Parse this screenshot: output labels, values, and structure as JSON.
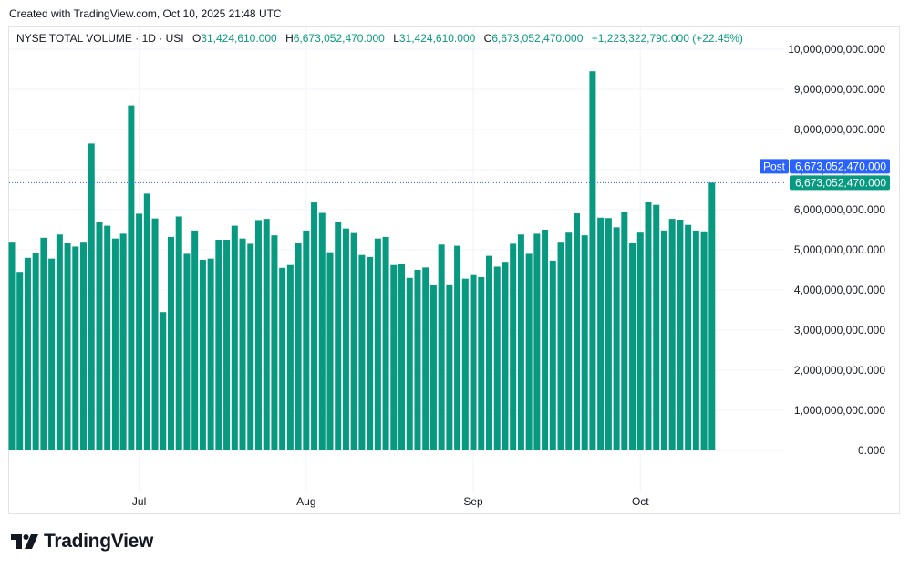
{
  "header": {
    "credit": "Created with TradingView.com, Oct 10, 2025 21:48 UTC"
  },
  "legend": {
    "symbol": "NYSE TOTAL VOLUME · 1D · USI",
    "o_key": "O",
    "o_val": "31,424,610.000",
    "h_key": "H",
    "h_val": "6,673,052,470.000",
    "l_key": "L",
    "l_val": "31,424,610.000",
    "c_key": "C",
    "c_val": "6,673,052,470.000",
    "change": "+1,223,322,790.000 (+22.45%)"
  },
  "price_labels": {
    "post_tag": "Post",
    "post_value": "6,673,052,470.000",
    "last_value": "6,673,052,470.000"
  },
  "brand": {
    "name": "TradingView"
  },
  "colors": {
    "bar": "#089981",
    "post_tag": "#2962ff",
    "last_label": "#089981",
    "grid": "#f0f3fa",
    "text": "#131722"
  },
  "chart_data": {
    "type": "bar",
    "series_name": "NYSE TOTAL VOLUME",
    "ylim": [
      0,
      10000000000000
    ],
    "y_ticks": [
      {
        "value": 0,
        "label": "0.000"
      },
      {
        "value": 1000000000000,
        "label": "1,000,000,000.000"
      },
      {
        "value": 2000000000000,
        "label": "2,000,000,000.000"
      },
      {
        "value": 3000000000000,
        "label": "3,000,000,000.000"
      },
      {
        "value": 4000000000000,
        "label": "4,000,000,000.000"
      },
      {
        "value": 5000000000000,
        "label": "5,000,000,000.000"
      },
      {
        "value": 6000000000000,
        "label": "6,000,000,000.000"
      },
      {
        "value": 7000000000000,
        "label": "7,000,000,000.000"
      },
      {
        "value": 8000000000000,
        "label": "8,000,000,000.000"
      },
      {
        "value": 9000000000000,
        "label": "9,000,000,000.000"
      },
      {
        "value": 10000000000000,
        "label": "10,000,000,000.000"
      }
    ],
    "x_ticks": [
      {
        "index": 16,
        "label": "Jul"
      },
      {
        "index": 37,
        "label": "Aug"
      },
      {
        "index": 58,
        "label": "Sep"
      },
      {
        "index": 79,
        "label": "Oct"
      }
    ],
    "last_value": 6673052470000,
    "values": [
      5200000000000,
      4450000000000,
      4800000000000,
      4920000000000,
      5300000000000,
      4780000000000,
      5380000000000,
      5180000000000,
      5080000000000,
      5200000000000,
      7650000000000,
      5700000000000,
      5600000000000,
      5280000000000,
      5400000000000,
      8600000000000,
      5900000000000,
      6400000000000,
      5780000000000,
      3450000000000,
      5320000000000,
      5830000000000,
      4900000000000,
      5480000000000,
      4750000000000,
      4780000000000,
      5250000000000,
      5250000000000,
      5600000000000,
      5280000000000,
      5150000000000,
      5740000000000,
      5770000000000,
      5360000000000,
      4550000000000,
      4620000000000,
      5180000000000,
      5480000000000,
      6180000000000,
      5920000000000,
      4940000000000,
      5700000000000,
      5530000000000,
      5440000000000,
      4870000000000,
      4820000000000,
      5280000000000,
      5320000000000,
      4620000000000,
      4660000000000,
      4300000000000,
      4500000000000,
      4560000000000,
      4120000000000,
      5130000000000,
      4140000000000,
      5100000000000,
      4280000000000,
      4370000000000,
      4320000000000,
      4850000000000,
      4580000000000,
      4700000000000,
      5150000000000,
      5380000000000,
      4900000000000,
      5400000000000,
      5500000000000,
      4730000000000,
      5200000000000,
      5450000000000,
      5910000000000,
      5360000000000,
      9450000000000,
      5800000000000,
      5790000000000,
      5560000000000,
      5940000000000,
      5180000000000,
      5450000000000,
      6200000000000,
      6120000000000,
      5480000000000,
      5770000000000,
      5750000000000,
      5620000000000,
      5480000000000,
      5460000000000,
      6673052470000
    ]
  }
}
